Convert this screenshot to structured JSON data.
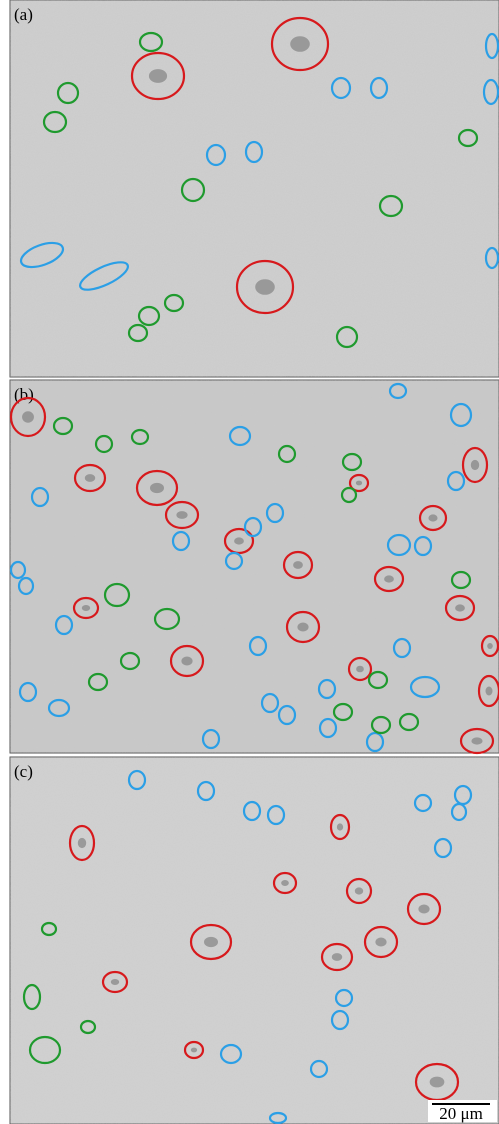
{
  "panels": [
    {
      "label": "(a)"
    },
    {
      "label": "(b)"
    },
    {
      "label": "(c)"
    }
  ],
  "scale_bar": {
    "label": "20 μm"
  }
}
